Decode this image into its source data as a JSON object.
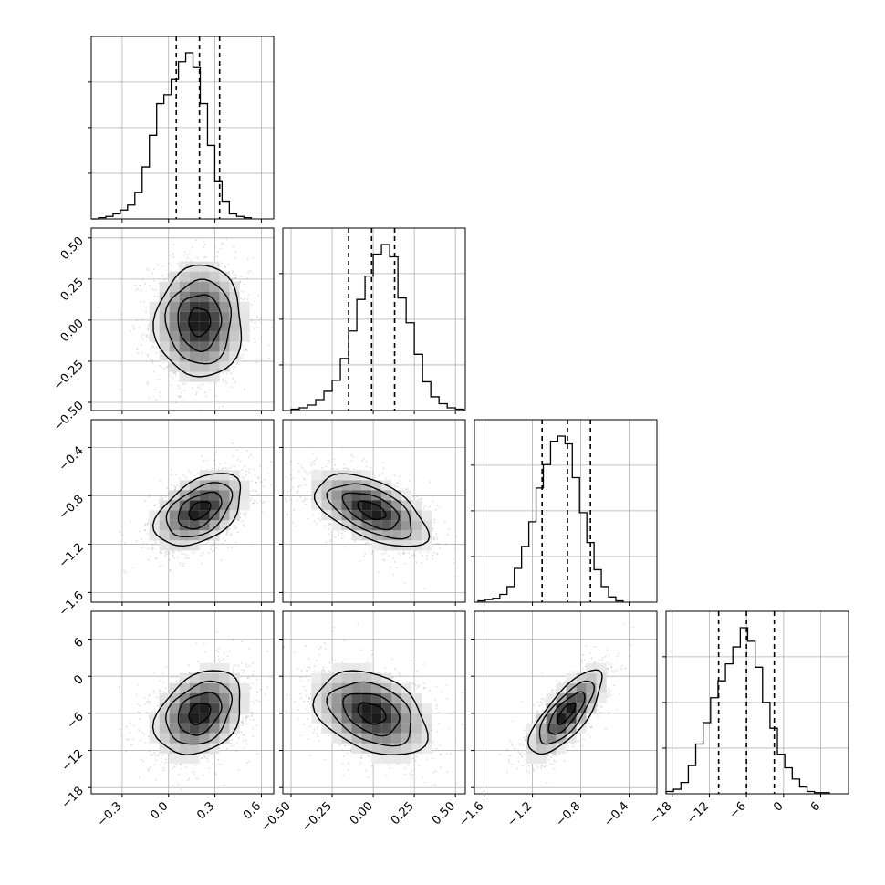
{
  "chart_data": {
    "type": "corner",
    "n_params": 4,
    "grid": true,
    "params": [
      {
        "range": [
          -0.5,
          0.68
        ],
        "ticks": [
          -0.3,
          0.0,
          0.3,
          0.6
        ],
        "tick_labels": [
          "−0.3",
          "0.0",
          "0.3",
          "0.6"
        ],
        "quantiles": [
          0.05,
          0.2,
          0.33
        ]
      },
      {
        "range": [
          -0.55,
          0.56
        ],
        "ticks": [
          -0.5,
          -0.25,
          0.0,
          0.25,
          0.5
        ],
        "tick_labels": [
          "−0.50",
          "−0.25",
          "0.00",
          "0.25",
          "0.50"
        ],
        "quantiles": [
          -0.15,
          -0.01,
          0.13
        ]
      },
      {
        "range": [
          -1.68,
          -0.17
        ],
        "ticks": [
          -1.6,
          -1.2,
          -0.8,
          -0.4
        ],
        "tick_labels": [
          "−1.6",
          "−1.2",
          "−0.8",
          "−0.4"
        ],
        "quantiles": [
          -1.12,
          -0.91,
          -0.72
        ]
      },
      {
        "range": [
          -19.0,
          10.5
        ],
        "ticks": [
          -18,
          -12,
          -6,
          0,
          6
        ],
        "tick_labels": [
          "−18",
          "−12",
          "−6",
          "0",
          "6"
        ],
        "quantiles": [
          -10.5,
          -6.0,
          -1.5
        ]
      }
    ],
    "marginals": [
      {
        "param": 0,
        "bins_from": -0.5,
        "bin_width": 0.047,
        "counts": [
          0,
          1,
          2,
          4,
          7,
          11,
          21,
          41,
          66,
          91,
          98,
          110,
          124,
          131,
          120,
          91,
          58,
          30,
          14,
          4,
          2,
          1
        ]
      },
      {
        "param": 1,
        "bins_from": -0.5,
        "bin_width": 0.05,
        "counts": [
          1,
          2,
          4,
          8,
          14,
          22,
          38,
          58,
          81,
          98,
          114,
          121,
          112,
          82,
          64,
          41,
          21,
          10,
          5,
          2,
          1
        ]
      },
      {
        "param": 2,
        "bins_from": -1.65,
        "bin_width": 0.06,
        "counts": [
          1,
          2,
          3,
          6,
          12,
          26,
          43,
          62,
          88,
          106,
          124,
          128,
          122,
          96,
          69,
          46,
          25,
          12,
          4,
          1
        ]
      },
      {
        "param": 3,
        "bins_from": -19.0,
        "bin_width": 1.2,
        "counts": [
          2,
          4,
          10,
          25,
          44,
          63,
          85,
          100,
          115,
          130,
          147,
          135,
          112,
          81,
          58,
          35,
          23,
          13,
          6,
          2,
          1,
          1
        ]
      }
    ],
    "pairs": [
      {
        "x_param": 0,
        "y_param": 1,
        "mean": [
          0.2,
          -0.01
        ],
        "std": [
          0.14,
          0.17
        ],
        "corr": 0.0
      },
      {
        "x_param": 0,
        "y_param": 2,
        "mean": [
          0.2,
          -0.92
        ],
        "std": [
          0.14,
          0.15
        ],
        "corr": 0.45
      },
      {
        "x_param": 1,
        "y_param": 2,
        "mean": [
          -0.01,
          -0.92
        ],
        "std": [
          0.17,
          0.15
        ],
        "corr": -0.55
      },
      {
        "x_param": 0,
        "y_param": 3,
        "mean": [
          0.2,
          -6.0
        ],
        "std": [
          0.14,
          3.4
        ],
        "corr": 0.3
      },
      {
        "x_param": 1,
        "y_param": 3,
        "mean": [
          -0.01,
          -6.0
        ],
        "std": [
          0.17,
          3.4
        ],
        "corr": -0.35
      },
      {
        "x_param": 2,
        "y_param": 3,
        "mean": [
          -0.92,
          -6.0
        ],
        "std": [
          0.15,
          3.4
        ],
        "corr": 0.75
      }
    ]
  }
}
